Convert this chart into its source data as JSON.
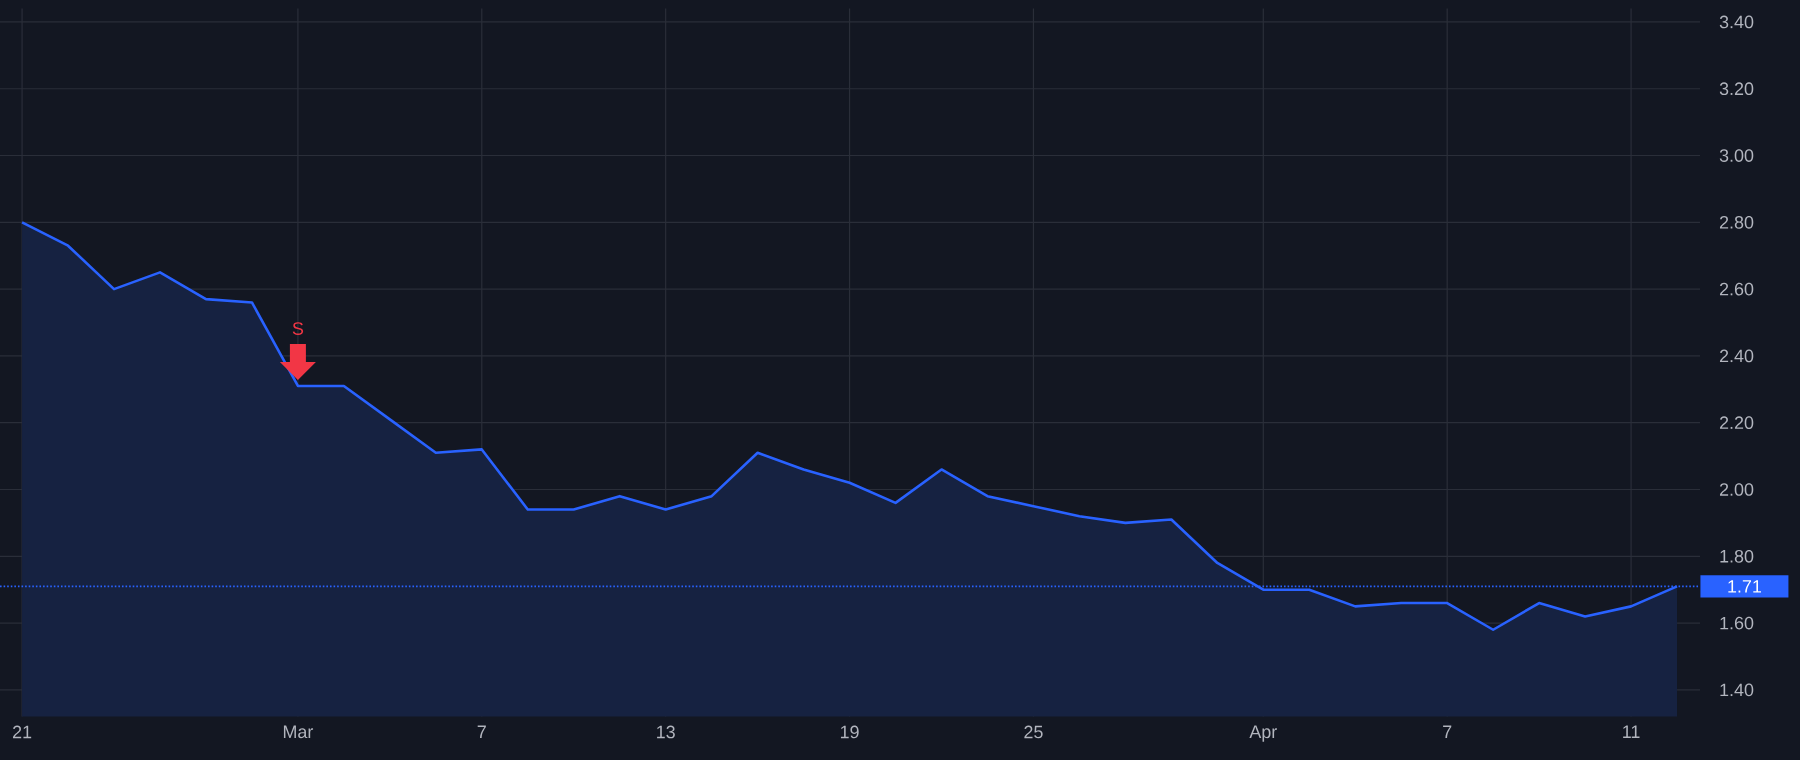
{
  "chart_data": {
    "type": "area",
    "categories": [
      "21",
      null,
      null,
      null,
      null,
      null,
      "Mar",
      null,
      null,
      null,
      "7",
      null,
      null,
      null,
      "13",
      null,
      null,
      null,
      "19",
      null,
      null,
      null,
      "25",
      null,
      null,
      null,
      null,
      "Apr",
      null,
      null,
      null,
      "7",
      null,
      null,
      null,
      "11",
      null
    ],
    "series": [
      {
        "color": "#2962ff",
        "values": [
          2.8,
          2.73,
          2.6,
          2.65,
          2.57,
          2.56,
          2.31,
          2.31,
          2.21,
          2.11,
          2.12,
          1.94,
          1.94,
          1.98,
          1.94,
          1.98,
          2.11,
          2.06,
          2.02,
          1.96,
          2.06,
          1.98,
          1.95,
          1.92,
          1.9,
          1.91,
          1.78,
          1.7,
          1.7,
          1.65,
          1.66,
          1.66,
          1.58,
          1.66,
          1.62,
          1.65,
          1.71
        ]
      }
    ],
    "ylim": [
      1.32,
      3.44
    ],
    "yticks": [
      {
        "value": 1.4,
        "label": "1.40"
      },
      {
        "value": 1.6,
        "label": "1.60"
      },
      {
        "value": 1.8,
        "label": "1.80"
      },
      {
        "value": 2.0,
        "label": "2.00"
      },
      {
        "value": 2.2,
        "label": "2.20"
      },
      {
        "value": 2.4,
        "label": "2.40"
      },
      {
        "value": 2.6,
        "label": "2.60"
      },
      {
        "value": 2.8,
        "label": "2.80"
      },
      {
        "value": 3.0,
        "label": "3.00"
      },
      {
        "value": 3.2,
        "label": "3.20"
      },
      {
        "value": 3.4,
        "label": "3.40"
      }
    ],
    "ref_lines": [
      {
        "axis": "y",
        "value": 1.71,
        "label": "1.71",
        "color": "#2962ff",
        "line_style": "dotted"
      }
    ],
    "annotations": [
      {
        "text": "S",
        "x": "Mar",
        "y": 2.31
      }
    ],
    "grid": true
  }
}
